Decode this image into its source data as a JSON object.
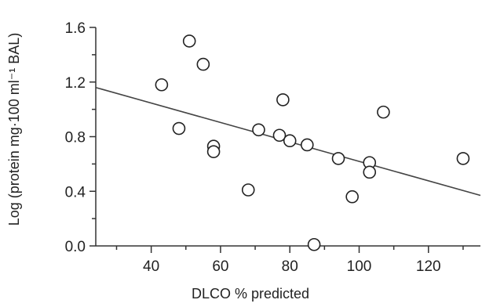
{
  "chart_data": {
    "type": "scatter",
    "title": "",
    "xlabel": "DLCO % predicted",
    "ylabel": "Log (protein mg·100 ml⁻¹ BAL)",
    "xlim": [
      24,
      135
    ],
    "ylim": [
      0.0,
      1.6
    ],
    "x_ticks": [
      40,
      60,
      80,
      100,
      120
    ],
    "x_tick_labels": [
      "40",
      "60",
      "80",
      "100",
      "120"
    ],
    "y_ticks": [
      0.0,
      0.4,
      0.8,
      1.2,
      1.6
    ],
    "y_tick_labels": [
      "0.0",
      "0.4",
      "0.8",
      "1.2",
      "1.6"
    ],
    "grid": false,
    "series": [
      {
        "points": [
          {
            "x": 43,
            "y": 1.18
          },
          {
            "x": 48,
            "y": 0.86
          },
          {
            "x": 51,
            "y": 1.5
          },
          {
            "x": 55,
            "y": 1.33
          },
          {
            "x": 58,
            "y": 0.73
          },
          {
            "x": 58,
            "y": 0.69
          },
          {
            "x": 68,
            "y": 0.41
          },
          {
            "x": 71,
            "y": 0.85
          },
          {
            "x": 77,
            "y": 0.81
          },
          {
            "x": 78,
            "y": 1.07
          },
          {
            "x": 80,
            "y": 0.77
          },
          {
            "x": 85,
            "y": 0.74
          },
          {
            "x": 87,
            "y": 0.01
          },
          {
            "x": 94,
            "y": 0.64
          },
          {
            "x": 98,
            "y": 0.36
          },
          {
            "x": 103,
            "y": 0.61
          },
          {
            "x": 103,
            "y": 0.54
          },
          {
            "x": 107,
            "y": 0.98
          },
          {
            "x": 130,
            "y": 0.64
          }
        ]
      }
    ],
    "trendline": {
      "x": [
        24,
        135
      ],
      "y": [
        1.16,
        0.37
      ]
    }
  }
}
